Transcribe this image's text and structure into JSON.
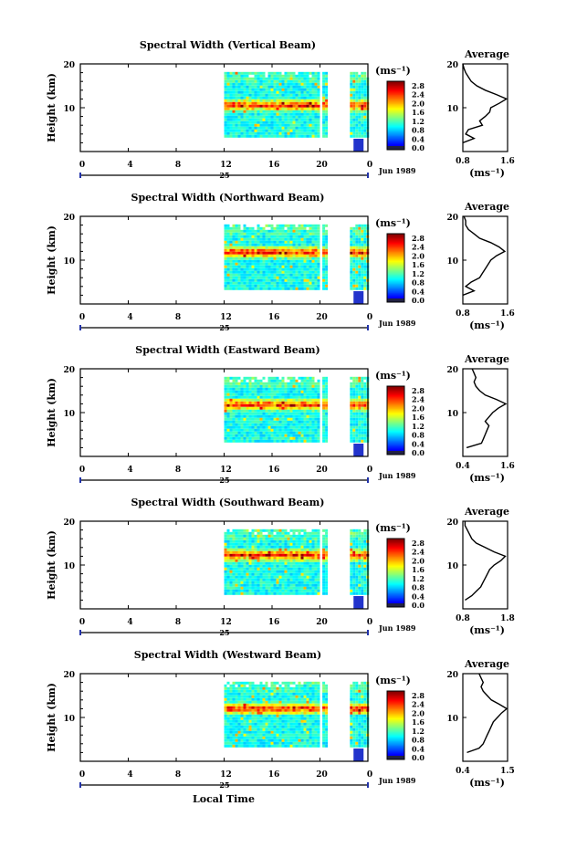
{
  "figure": {
    "x_axis_label": "Local Time",
    "height_axis_label": "Height (km)",
    "date_label": "Jun 1989",
    "day_label": "25",
    "average_title": "Average",
    "unit_label": "(ms⁻¹)"
  },
  "chart_data": [
    {
      "type": "heatmap",
      "title": "Spectral Width (Vertical Beam)",
      "ylabel": "Height (km)",
      "xlabel": "Local Time",
      "x_ticks": [
        "0",
        "4",
        "8",
        "12",
        "16",
        "20",
        "0"
      ],
      "y_ticks": [
        "20",
        "10"
      ],
      "xlim": [
        0,
        24
      ],
      "ylim": [
        0,
        20
      ],
      "colorbar": {
        "unit": "(ms⁻¹)",
        "ticks": [
          "2.8",
          "2.4",
          "2.0",
          "1.6",
          "1.2",
          "0.8",
          "0.4",
          "0.0"
        ]
      },
      "average": {
        "title": "Average",
        "xlim": [
          0.8,
          1.6
        ],
        "x_ticks": [
          "0.8",
          "1.6"
        ],
        "y_ticks": [
          "20",
          "10"
        ],
        "xlabel": "(ms⁻¹)",
        "profile": [
          [
            0.8,
            2
          ],
          [
            1.0,
            3
          ],
          [
            0.85,
            4
          ],
          [
            0.9,
            5
          ],
          [
            1.15,
            6
          ],
          [
            1.1,
            7
          ],
          [
            1.2,
            8
          ],
          [
            1.28,
            9
          ],
          [
            1.3,
            10
          ],
          [
            1.45,
            11
          ],
          [
            1.58,
            12
          ],
          [
            1.4,
            13
          ],
          [
            1.2,
            14
          ],
          [
            1.05,
            15
          ],
          [
            0.95,
            16
          ],
          [
            0.9,
            17
          ],
          [
            0.85,
            18
          ],
          [
            0.82,
            19
          ],
          [
            0.8,
            20
          ]
        ]
      }
    },
    {
      "type": "heatmap",
      "title": "Spectral Width (Northward Beam)",
      "ylabel": "Height (km)",
      "xlabel": "Local Time",
      "x_ticks": [
        "0",
        "4",
        "8",
        "12",
        "16",
        "20",
        "0"
      ],
      "y_ticks": [
        "20",
        "10"
      ],
      "xlim": [
        0,
        24
      ],
      "ylim": [
        0,
        20
      ],
      "colorbar": {
        "unit": "(ms⁻¹)",
        "ticks": [
          "2.8",
          "2.4",
          "2.0",
          "1.6",
          "1.2",
          "0.8",
          "0.4",
          "0.0"
        ]
      },
      "average": {
        "title": "Average",
        "xlim": [
          0.8,
          1.6
        ],
        "x_ticks": [
          "0.8",
          "1.6"
        ],
        "y_ticks": [
          "20",
          "10"
        ],
        "xlabel": "(ms⁻¹)",
        "profile": [
          [
            0.8,
            2
          ],
          [
            1.0,
            3
          ],
          [
            0.85,
            4
          ],
          [
            0.95,
            5
          ],
          [
            1.1,
            6
          ],
          [
            1.15,
            7
          ],
          [
            1.2,
            8
          ],
          [
            1.25,
            9
          ],
          [
            1.3,
            10
          ],
          [
            1.4,
            11
          ],
          [
            1.55,
            12
          ],
          [
            1.45,
            13
          ],
          [
            1.3,
            14
          ],
          [
            1.1,
            15
          ],
          [
            1.0,
            16
          ],
          [
            0.9,
            17
          ],
          [
            0.85,
            18
          ],
          [
            0.85,
            19
          ],
          [
            0.82,
            20
          ]
        ]
      }
    },
    {
      "type": "heatmap",
      "title": "Spectral Width (Eastward Beam)",
      "ylabel": "Height (km)",
      "xlabel": "Local Time",
      "x_ticks": [
        "0",
        "4",
        "8",
        "12",
        "16",
        "20",
        "0"
      ],
      "y_ticks": [
        "20",
        "10"
      ],
      "xlim": [
        0,
        24
      ],
      "ylim": [
        0,
        20
      ],
      "colorbar": {
        "unit": "(ms⁻¹)",
        "ticks": [
          "2.8",
          "2.4",
          "2.0",
          "1.6",
          "1.2",
          "0.8",
          "0.4",
          "0.0"
        ]
      },
      "average": {
        "title": "Average",
        "xlim": [
          0.4,
          1.6
        ],
        "x_ticks": [
          "0.4",
          "1.6"
        ],
        "y_ticks": [
          "20",
          "10"
        ],
        "xlabel": "(ms⁻¹)",
        "profile": [
          [
            0.5,
            2
          ],
          [
            0.9,
            3
          ],
          [
            0.95,
            4
          ],
          [
            1.0,
            5
          ],
          [
            1.05,
            6
          ],
          [
            1.1,
            7
          ],
          [
            1.0,
            8
          ],
          [
            1.1,
            9
          ],
          [
            1.2,
            10
          ],
          [
            1.35,
            11
          ],
          [
            1.55,
            12
          ],
          [
            1.3,
            13
          ],
          [
            1.0,
            14
          ],
          [
            0.85,
            15
          ],
          [
            0.75,
            16
          ],
          [
            0.7,
            17
          ],
          [
            0.75,
            18
          ],
          [
            0.7,
            19
          ],
          [
            0.65,
            20
          ]
        ]
      }
    },
    {
      "type": "heatmap",
      "title": "Spectral Width (Southward Beam)",
      "ylabel": "Height (km)",
      "xlabel": "Local Time",
      "x_ticks": [
        "0",
        "4",
        "8",
        "12",
        "16",
        "20",
        "0"
      ],
      "y_ticks": [
        "20",
        "10"
      ],
      "xlim": [
        0,
        24
      ],
      "ylim": [
        0,
        20
      ],
      "colorbar": {
        "unit": "(ms⁻¹)",
        "ticks": [
          "2.8",
          "2.4",
          "2.0",
          "1.6",
          "1.2",
          "0.8",
          "0.4",
          "0.0"
        ]
      },
      "average": {
        "title": "Average",
        "xlim": [
          0.8,
          1.8
        ],
        "x_ticks": [
          "0.8",
          "1.8"
        ],
        "y_ticks": [
          "20",
          "10"
        ],
        "xlabel": "(ms⁻¹)",
        "profile": [
          [
            0.85,
            2
          ],
          [
            1.0,
            3
          ],
          [
            1.1,
            4
          ],
          [
            1.2,
            5
          ],
          [
            1.25,
            6
          ],
          [
            1.3,
            7
          ],
          [
            1.35,
            8
          ],
          [
            1.4,
            9
          ],
          [
            1.5,
            10
          ],
          [
            1.65,
            11
          ],
          [
            1.75,
            12
          ],
          [
            1.5,
            13
          ],
          [
            1.3,
            14
          ],
          [
            1.1,
            15
          ],
          [
            1.0,
            16
          ],
          [
            0.95,
            17
          ],
          [
            0.9,
            18
          ],
          [
            0.85,
            19
          ],
          [
            0.85,
            20
          ]
        ]
      }
    },
    {
      "type": "heatmap",
      "title": "Spectral Width (Westward Beam)",
      "ylabel": "Height (km)",
      "xlabel": "Local Time",
      "x_ticks": [
        "0",
        "4",
        "8",
        "12",
        "16",
        "20",
        "0"
      ],
      "y_ticks": [
        "20",
        "10"
      ],
      "xlim": [
        0,
        24
      ],
      "ylim": [
        0,
        20
      ],
      "colorbar": {
        "unit": "(ms⁻¹)",
        "ticks": [
          "2.8",
          "2.4",
          "2.0",
          "1.6",
          "1.2",
          "0.8",
          "0.4",
          "0.0"
        ]
      },
      "average": {
        "title": "Average",
        "xlim": [
          0.4,
          1.5
        ],
        "x_ticks": [
          "0.4",
          "1.5"
        ],
        "y_ticks": [
          "20",
          "10"
        ],
        "xlabel": "(ms⁻¹)",
        "profile": [
          [
            0.5,
            2
          ],
          [
            0.8,
            3
          ],
          [
            0.9,
            4
          ],
          [
            0.95,
            5
          ],
          [
            1.0,
            6
          ],
          [
            1.05,
            7
          ],
          [
            1.1,
            8
          ],
          [
            1.15,
            9
          ],
          [
            1.25,
            10
          ],
          [
            1.35,
            11
          ],
          [
            1.48,
            12
          ],
          [
            1.3,
            13
          ],
          [
            1.1,
            14
          ],
          [
            1.0,
            15
          ],
          [
            0.9,
            16
          ],
          [
            0.85,
            17
          ],
          [
            0.9,
            18
          ],
          [
            0.85,
            19
          ],
          [
            0.8,
            20
          ]
        ]
      }
    }
  ]
}
